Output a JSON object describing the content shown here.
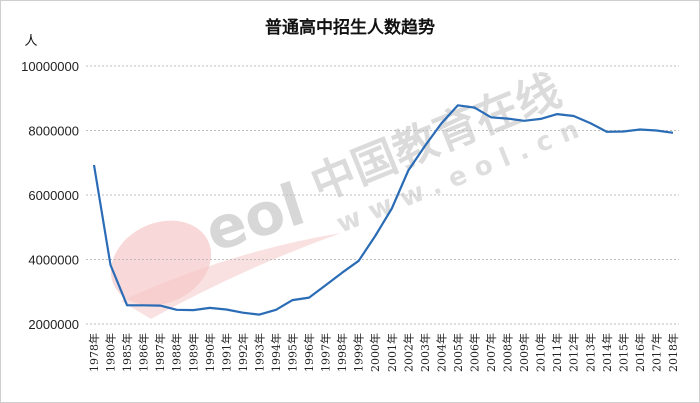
{
  "chart_data": {
    "type": "line",
    "title": "普通高中招生人数趋势",
    "ylabel": "人",
    "xlabel": "",
    "ylim": [
      2000000,
      10000000
    ],
    "yticks": [
      "2000000",
      "4000000",
      "6000000",
      "8000000",
      "10000000"
    ],
    "grid": true,
    "categories": [
      "1978年",
      "1980年",
      "1985年",
      "1986年",
      "1987年",
      "1988年",
      "1989年",
      "1990年",
      "1991年",
      "1992年",
      "1993年",
      "1994年",
      "1995年",
      "1996年",
      "1997年",
      "1998年",
      "1999年",
      "2000年",
      "2001年",
      "2002年",
      "2003年",
      "2004年",
      "2005年",
      "2006年",
      "2007年",
      "2008年",
      "2009年",
      "2010年",
      "2011年",
      "2012年",
      "2013年",
      "2014年",
      "2015年",
      "2016年",
      "2017年",
      "2018年"
    ],
    "series": [
      {
        "values": [
          6930000,
          3830000,
          2580000,
          2580000,
          2570000,
          2440000,
          2430000,
          2500000,
          2450000,
          2350000,
          2290000,
          2440000,
          2740000,
          2820000,
          3200000,
          3590000,
          3960000,
          4730000,
          5580000,
          6760000,
          7520000,
          8220000,
          8780000,
          8710000,
          8410000,
          8370000,
          8300000,
          8360000,
          8510000,
          8450000,
          8230000,
          7960000,
          7970000,
          8030000,
          8000000,
          7930000
        ]
      }
    ],
    "line_color": "#2a6cb5"
  },
  "watermark": {
    "logo_text": "eol",
    "cn_text": "中国教育在线",
    "url_text": "www.eol.cn"
  }
}
